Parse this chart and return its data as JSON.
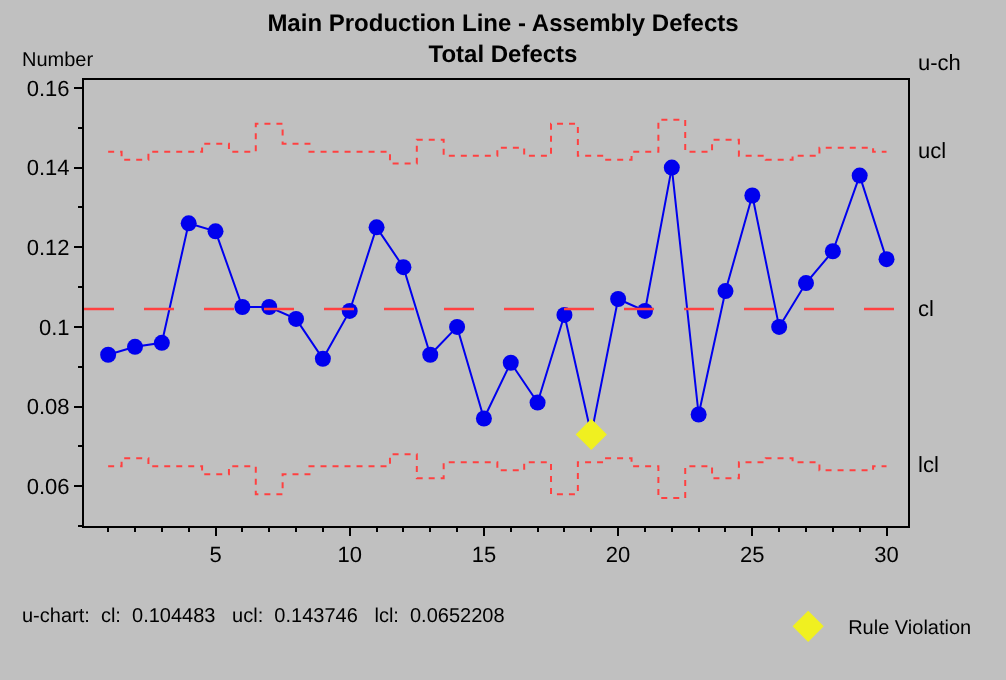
{
  "chart_data": {
    "type": "line",
    "title": "Main Production Line - Assembly Defects",
    "subtitle": "Total Defects",
    "ylabel": "Number",
    "x": [
      1,
      2,
      3,
      4,
      5,
      6,
      7,
      8,
      9,
      10,
      11,
      12,
      13,
      14,
      15,
      16,
      17,
      18,
      19,
      20,
      21,
      22,
      23,
      24,
      25,
      26,
      27,
      28,
      29,
      30
    ],
    "series": [
      {
        "color": "#0000ee",
        "marker": "circle",
        "colors": [
          "#0000ee",
          "#0000ee",
          "#0000ee",
          "#0000ee",
          "#0000ee",
          "#0000ee",
          "#0000ee",
          "#0000ee",
          "#0000ee",
          "#0000ee",
          "#0000ee",
          "#0000ee",
          "#0000ee",
          "#0000ee",
          "#0000ee",
          "#0000ee",
          "#0000ee",
          "#0000ee",
          "#f0f020",
          "#0000ee",
          "#0000ee",
          "#0000ee",
          "#0000ee",
          "#0000ee",
          "#0000ee",
          "#0000ee",
          "#0000ee",
          "#0000ee",
          "#0000ee",
          "#0000ee"
        ],
        "values": [
          0.093,
          0.095,
          0.096,
          0.126,
          0.124,
          0.105,
          0.105,
          0.102,
          0.092,
          0.104,
          0.125,
          0.115,
          0.093,
          0.1,
          0.077,
          0.091,
          0.081,
          0.103,
          0.073,
          0.107,
          0.104,
          0.14,
          0.078,
          0.109,
          0.133,
          0.1,
          0.111,
          0.119,
          0.138,
          0.117
        ]
      },
      {
        "type": "step",
        "name": "ucl",
        "color": "#ff4040",
        "line_style": "dotted",
        "marker": "none",
        "values": [
          0.144,
          0.142,
          0.144,
          0.144,
          0.146,
          0.144,
          0.151,
          0.146,
          0.144,
          0.144,
          0.144,
          0.141,
          0.147,
          0.143,
          0.143,
          0.145,
          0.143,
          0.151,
          0.143,
          0.142,
          0.144,
          0.152,
          0.144,
          0.147,
          0.143,
          0.142,
          0.143,
          0.145,
          0.145,
          0.144
        ]
      },
      {
        "type": "step",
        "name": "lcl",
        "color": "#ff4040",
        "line_style": "dotted",
        "marker": "none",
        "values": [
          0.065,
          0.067,
          0.065,
          0.065,
          0.063,
          0.065,
          0.058,
          0.063,
          0.065,
          0.065,
          0.065,
          0.068,
          0.062,
          0.066,
          0.066,
          0.064,
          0.066,
          0.058,
          0.066,
          0.067,
          0.065,
          0.057,
          0.065,
          0.062,
          0.066,
          0.067,
          0.066,
          0.064,
          0.064,
          0.065
        ]
      },
      {
        "type": "scatter",
        "name": "Rule Violation",
        "color": "#f0f020",
        "marker": "diamond",
        "x": [
          19
        ],
        "values": [
          0.073
        ]
      }
    ],
    "ref_lines": [
      {
        "axis": "y",
        "value": 0.104483,
        "label": "cl",
        "color": "#ff4040",
        "line_style": "dashed"
      }
    ],
    "xlim": [
      0.1,
      30.8
    ],
    "xticks": [
      5,
      10,
      15,
      20,
      25,
      30
    ],
    "ylim": [
      0.05,
      0.162
    ],
    "yticks": [
      0.06,
      0.08,
      0.1,
      0.12,
      0.14,
      0.16
    ],
    "grid": false,
    "legend": "bottom right",
    "annotations": [
      "u-ch",
      "u-chart:  cl:  0.104483   ucl:  0.143746   lcl:  0.0652208"
    ]
  }
}
